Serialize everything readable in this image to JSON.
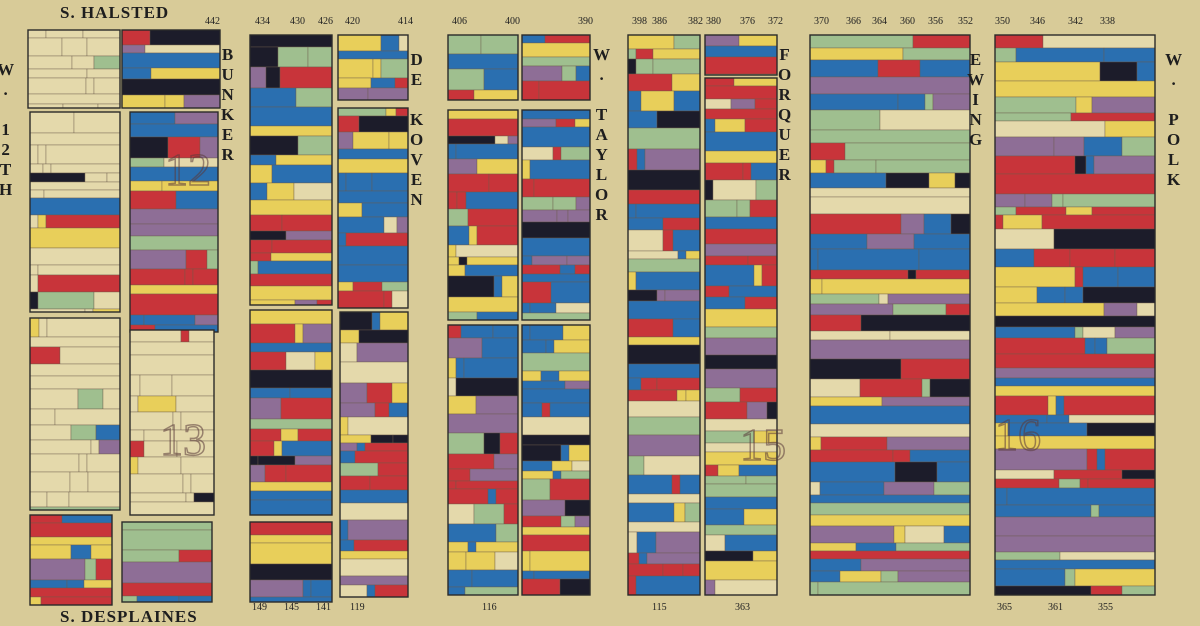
{
  "streets": [
    "S. HALSTED",
    "S. DESPLAINES",
    "W. 12TH",
    "BUNKER",
    "DE KOVEN",
    "W. TAYLOR",
    "FORQUER",
    "EWING",
    "W. POLK"
  ],
  "block_numbers": [
    "12",
    "13",
    "15",
    "16"
  ],
  "house_numbers_top": [
    "442",
    "434",
    "430",
    "426",
    "420",
    "414",
    "406",
    "400",
    "390",
    "398",
    "386",
    "382",
    "380",
    "376",
    "372",
    "370",
    "366",
    "364",
    "360",
    "356",
    "352",
    "350",
    "346",
    "342",
    "338"
  ],
  "house_numbers_bottom": [
    "149",
    "145",
    "141",
    "119",
    "116",
    "115",
    "363",
    "365",
    "361",
    "355"
  ]
}
